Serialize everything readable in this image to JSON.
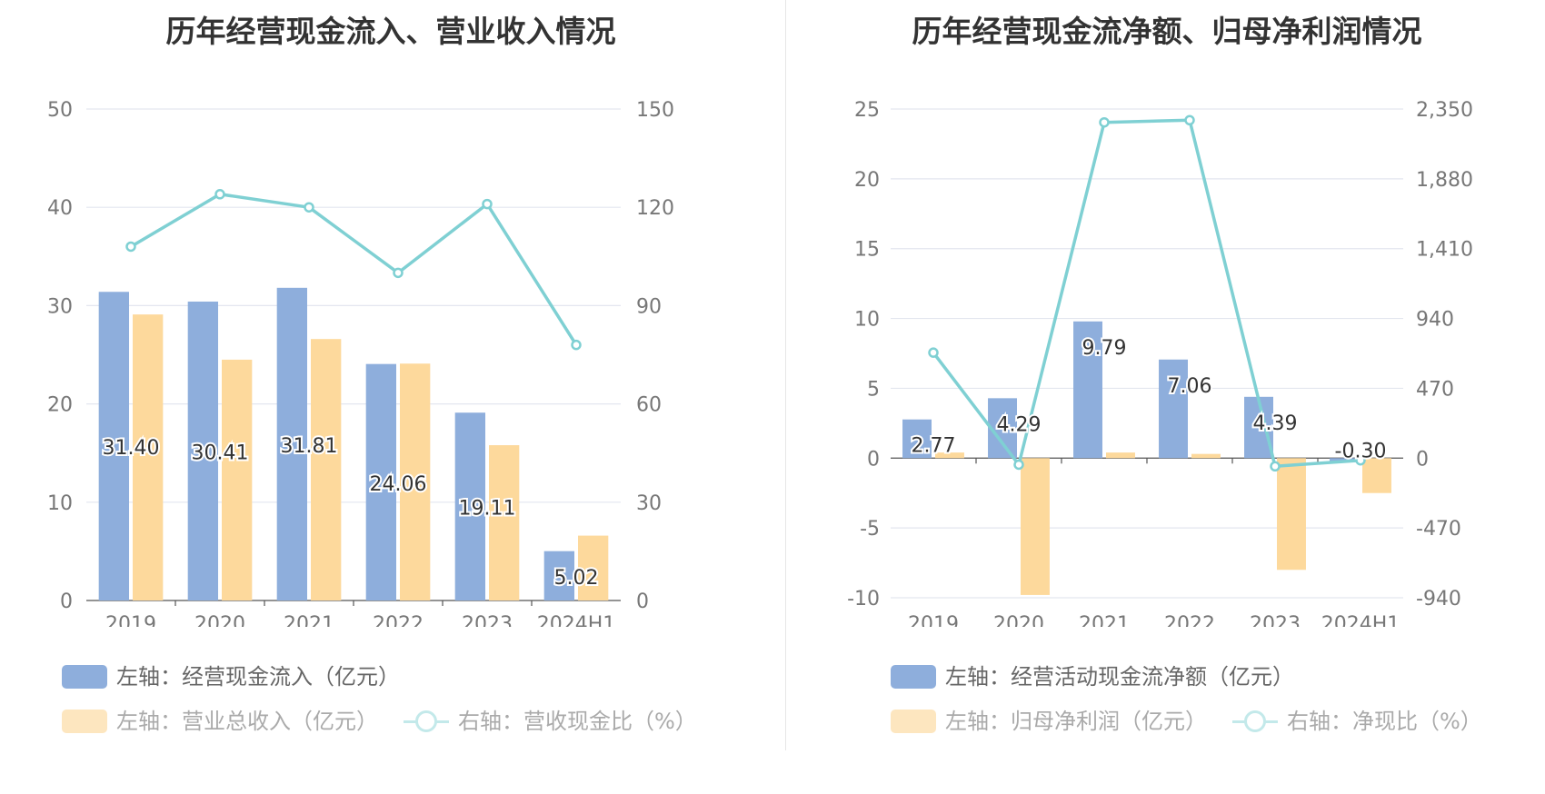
{
  "charts": [
    {
      "title": "历年经营现金流入、营业收入情况",
      "legend": [
        {
          "label": "左轴：经营现金流入（亿元）",
          "kind": "bar",
          "color": "#8eaedc"
        },
        {
          "label": "左轴：营业总收入（亿元）",
          "kind": "bar",
          "color": "#fdd99c"
        },
        {
          "label": "右轴：营收现金比（%）",
          "kind": "line",
          "color": "#7fd0d3"
        }
      ]
    },
    {
      "title": "历年经营现金流净额、归母净利润情况",
      "legend": [
        {
          "label": "左轴：经营活动现金流净额（亿元）",
          "kind": "bar",
          "color": "#8eaedc"
        },
        {
          "label": "左轴：归母净利润（亿元）",
          "kind": "bar",
          "color": "#fdd99c"
        },
        {
          "label": "右轴：净现比（%）",
          "kind": "line",
          "color": "#7fd0d3"
        }
      ]
    }
  ],
  "chart_data": [
    {
      "type": "bar",
      "title": "历年经营现金流入、营业收入情况",
      "categories": [
        "2019",
        "2020",
        "2021",
        "2022",
        "2023",
        "2024H1"
      ],
      "left_axis": {
        "min": 0,
        "max": 50,
        "ticks": [
          "0",
          "10",
          "20",
          "30",
          "40",
          "50"
        ]
      },
      "right_axis": {
        "min": 0,
        "max": 150,
        "ticks": [
          "0",
          "30",
          "60",
          "90",
          "120",
          "150"
        ]
      },
      "series": [
        {
          "name": "左轴：经营现金流入（亿元）",
          "type": "bar",
          "axis": "left",
          "color": "#8eaedc",
          "values": [
            31.4,
            30.41,
            31.81,
            24.06,
            19.11,
            5.02
          ],
          "labels": [
            "31.40",
            "30.41",
            "31.81",
            "24.06",
            "19.11",
            "5.02"
          ]
        },
        {
          "name": "左轴：营业总收入（亿元）",
          "type": "bar",
          "axis": "left",
          "color": "#fdd99c",
          "values": [
            29.1,
            24.5,
            26.6,
            24.1,
            15.8,
            6.6
          ]
        },
        {
          "name": "右轴：营收现金比（%）",
          "type": "line",
          "axis": "right",
          "color": "#7fd0d3",
          "values": [
            108,
            124,
            120,
            100,
            121,
            78
          ]
        }
      ]
    },
    {
      "type": "bar",
      "title": "历年经营现金流净额、归母净利润情况",
      "categories": [
        "2019",
        "2020",
        "2021",
        "2022",
        "2023",
        "2024H1"
      ],
      "left_axis": {
        "min": -10,
        "max": 25,
        "ticks": [
          "-10",
          "-5",
          "0",
          "5",
          "10",
          "15",
          "20",
          "25"
        ]
      },
      "right_axis": {
        "min": -940,
        "max": 2350,
        "ticks": [
          "-940",
          "-470",
          "0",
          "470",
          "940",
          "1,410",
          "1,880",
          "2,350"
        ]
      },
      "series": [
        {
          "name": "左轴：经营活动现金流净额（亿元）",
          "type": "bar",
          "axis": "left",
          "color": "#8eaedc",
          "values": [
            2.77,
            4.29,
            9.79,
            7.06,
            4.39,
            -0.3
          ],
          "labels": [
            "2.77",
            "4.29",
            "9.79",
            "7.06",
            "4.39",
            "-0.30"
          ]
        },
        {
          "name": "左轴：归母净利润（亿元）",
          "type": "bar",
          "axis": "left",
          "color": "#fdd99c",
          "values": [
            0.4,
            -9.8,
            0.4,
            0.3,
            -8.0,
            -2.5
          ]
        },
        {
          "name": "右轴：净现比（%）",
          "type": "line",
          "axis": "right",
          "color": "#7fd0d3",
          "values": [
            710,
            -44,
            2260,
            2275,
            -55,
            -15
          ]
        }
      ]
    }
  ]
}
